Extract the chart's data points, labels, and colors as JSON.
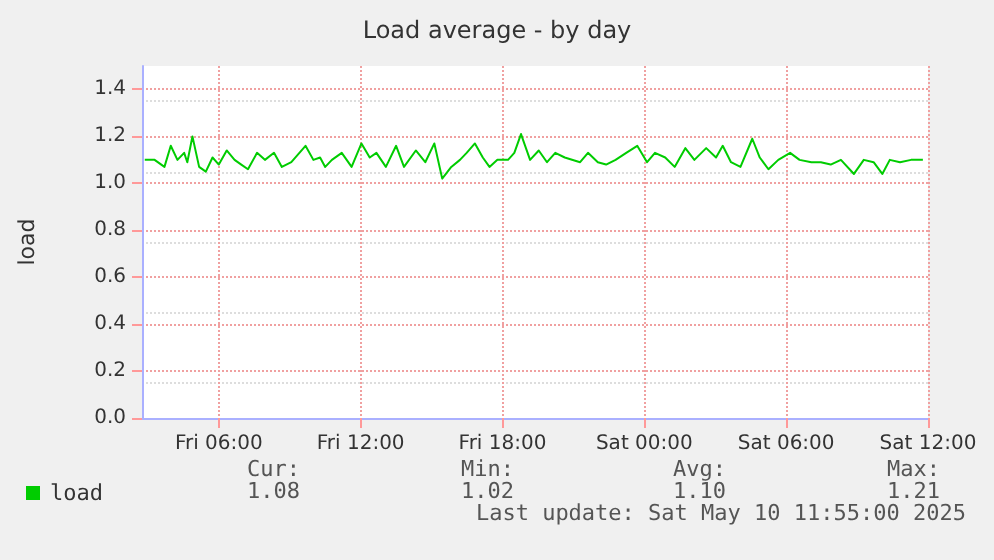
{
  "chart_data": {
    "type": "line",
    "title": "Load average - by day",
    "ylabel": "load",
    "xlim": [
      "2025-05-09T02:45",
      "2025-05-10T12:00"
    ],
    "xticks": [
      {
        "value": "2025-05-09T06:00",
        "label": "Fri 06:00"
      },
      {
        "value": "2025-05-09T12:00",
        "label": "Fri 12:00"
      },
      {
        "value": "2025-05-09T18:00",
        "label": "Fri 18:00"
      },
      {
        "value": "2025-05-10T00:00",
        "label": "Sat 00:00"
      },
      {
        "value": "2025-05-10T06:00",
        "label": "Sat 06:00"
      },
      {
        "value": "2025-05-10T12:00",
        "label": "Sat 12:00"
      }
    ],
    "ylim": [
      0,
      1.5
    ],
    "yticks": [
      {
        "value": 0,
        "label": "0.0"
      },
      {
        "value": 0.2,
        "label": "0.2"
      },
      {
        "value": 0.4,
        "label": "0.4"
      },
      {
        "value": 0.6,
        "label": "0.6"
      },
      {
        "value": 0.8,
        "label": "0.8"
      },
      {
        "value": 1,
        "label": "1.0"
      },
      {
        "value": 1.2,
        "label": "1.2"
      },
      {
        "value": 1.4,
        "label": "1.4"
      }
    ],
    "grid": true,
    "legend": "bottom left",
    "marker": "none",
    "line_style": "solid",
    "series": [
      {
        "name": "load",
        "color": "#00cc00",
        "x": [
          "2025-05-09T02:52",
          "2025-05-09T03:17",
          "2025-05-09T03:42",
          "2025-05-09T03:58",
          "2025-05-09T04:15",
          "2025-05-09T04:32",
          "2025-05-09T04:40",
          "2025-05-09T04:53",
          "2025-05-09T05:10",
          "2025-05-09T05:27",
          "2025-05-09T05:44",
          "2025-05-09T06:00",
          "2025-05-09T06:20",
          "2025-05-09T06:40",
          "2025-05-09T06:57",
          "2025-05-09T07:14",
          "2025-05-09T07:37",
          "2025-05-09T07:57",
          "2025-05-09T08:20",
          "2025-05-09T08:40",
          "2025-05-09T09:04",
          "2025-05-09T09:40",
          "2025-05-09T10:00",
          "2025-05-09T10:17",
          "2025-05-09T10:30",
          "2025-05-09T10:47",
          "2025-05-09T11:12",
          "2025-05-09T11:37",
          "2025-05-09T12:02",
          "2025-05-09T12:23",
          "2025-05-09T12:40",
          "2025-05-09T13:04",
          "2025-05-09T13:30",
          "2025-05-09T13:50",
          "2025-05-09T14:20",
          "2025-05-09T14:44",
          "2025-05-09T15:07",
          "2025-05-09T15:27",
          "2025-05-09T15:50",
          "2025-05-09T16:12",
          "2025-05-09T16:29",
          "2025-05-09T16:50",
          "2025-05-09T17:10",
          "2025-05-09T17:27",
          "2025-05-09T17:47",
          "2025-05-09T18:14",
          "2025-05-09T18:30",
          "2025-05-09T18:47",
          "2025-05-09T19:10",
          "2025-05-09T19:32",
          "2025-05-09T19:53",
          "2025-05-09T20:14",
          "2025-05-09T20:38",
          "2025-05-09T21:17",
          "2025-05-09T21:37",
          "2025-05-09T22:02",
          "2025-05-09T22:23",
          "2025-05-09T22:47",
          "2025-05-09T23:14",
          "2025-05-09T23:42",
          "2025-05-10T00:07",
          "2025-05-10T00:27",
          "2025-05-10T00:53",
          "2025-05-10T01:17",
          "2025-05-10T01:44",
          "2025-05-10T02:07",
          "2025-05-10T02:37",
          "2025-05-10T03:02",
          "2025-05-10T03:19",
          "2025-05-10T03:40",
          "2025-05-10T04:04",
          "2025-05-10T04:34",
          "2025-05-10T04:53",
          "2025-05-10T05:15",
          "2025-05-10T05:40",
          "2025-05-10T06:10",
          "2025-05-10T06:34",
          "2025-05-10T07:04",
          "2025-05-10T07:28",
          "2025-05-10T07:53",
          "2025-05-10T08:19",
          "2025-05-10T08:52",
          "2025-05-10T09:17",
          "2025-05-10T09:42",
          "2025-05-10T10:04",
          "2025-05-10T10:23",
          "2025-05-10T10:49",
          "2025-05-10T11:17",
          "2025-05-10T11:47"
        ],
        "values": [
          1.1,
          1.1,
          1.07,
          1.16,
          1.1,
          1.13,
          1.09,
          1.2,
          1.07,
          1.05,
          1.11,
          1.08,
          1.14,
          1.1,
          1.08,
          1.06,
          1.13,
          1.1,
          1.13,
          1.07,
          1.09,
          1.16,
          1.1,
          1.11,
          1.07,
          1.1,
          1.13,
          1.07,
          1.17,
          1.11,
          1.13,
          1.07,
          1.16,
          1.07,
          1.14,
          1.09,
          1.17,
          1.02,
          1.07,
          1.1,
          1.13,
          1.17,
          1.11,
          1.07,
          1.1,
          1.1,
          1.13,
          1.21,
          1.1,
          1.14,
          1.09,
          1.13,
          1.11,
          1.09,
          1.13,
          1.09,
          1.08,
          1.1,
          1.13,
          1.16,
          1.09,
          1.13,
          1.11,
          1.07,
          1.15,
          1.1,
          1.15,
          1.11,
          1.16,
          1.09,
          1.07,
          1.19,
          1.11,
          1.06,
          1.1,
          1.13,
          1.1,
          1.09,
          1.09,
          1.08,
          1.1,
          1.04,
          1.1,
          1.09,
          1.04,
          1.1,
          1.09,
          1.1,
          1.1
        ]
      }
    ],
    "annotations": [
      "Cur:",
      "1.08",
      "Min:",
      "1.02",
      "Avg:",
      "1.10",
      "Max:",
      "1.21",
      "Last update: Sat May 10 11:55:00 2025"
    ]
  }
}
